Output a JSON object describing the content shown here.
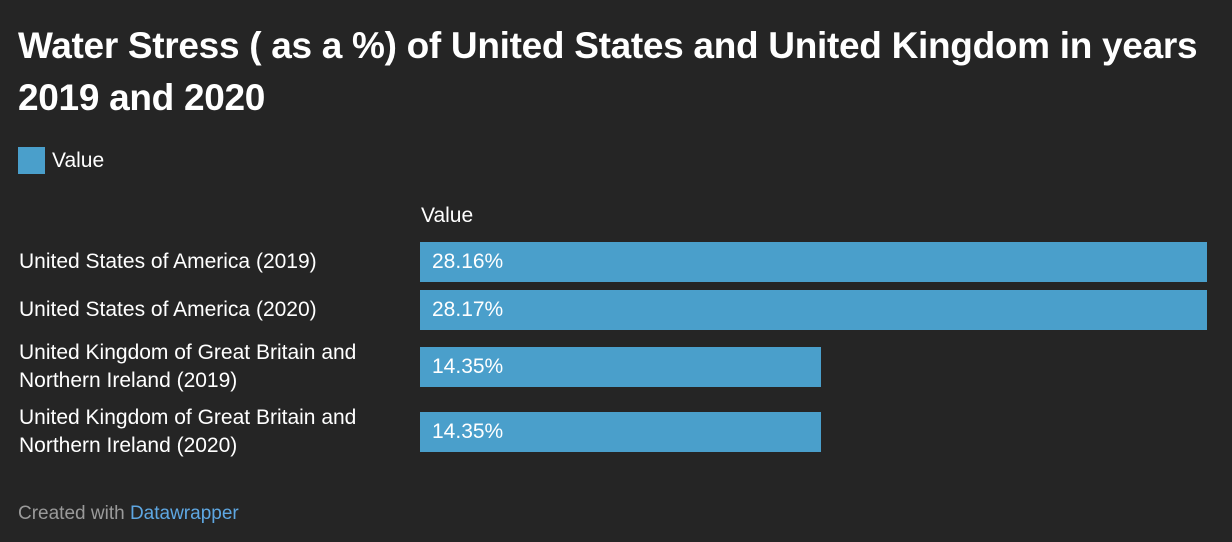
{
  "title": "Water Stress ( as a %) of United States and United Kingdom in years 2019 and 2020",
  "legend": {
    "label": "Value",
    "color": "#4a9fcb"
  },
  "column_header": "Value",
  "footer": {
    "prefix": "Created with",
    "link_text": "Datawrapper"
  },
  "chart_data": {
    "type": "bar",
    "orientation": "horizontal",
    "title": "Water Stress ( as a %) of United States and United Kingdom in years 2019 and 2020",
    "categories": [
      "United States of America (2019)",
      "United States of America (2020)",
      "United Kingdom of Great Britain and Northern Ireland (2019)",
      "United Kingdom of Great Britain and Northern Ireland (2020)"
    ],
    "series": [
      {
        "name": "Value",
        "values": [
          28.16,
          28.17,
          14.35,
          14.35
        ],
        "labels": [
          "28.16%",
          "28.17%",
          "14.35%",
          "14.35%"
        ]
      }
    ],
    "xlim": [
      0,
      28.17
    ],
    "grid": false,
    "legend_position": "top-left",
    "bar_color": "#4a9fcb"
  }
}
